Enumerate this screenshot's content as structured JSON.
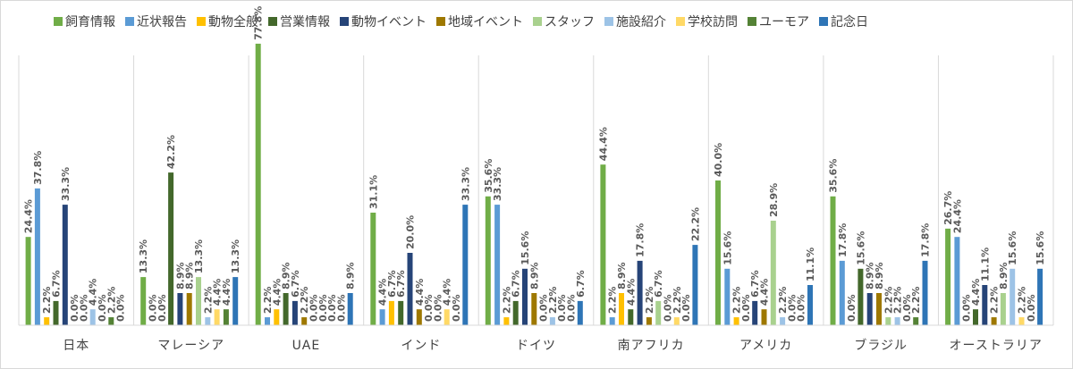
{
  "chart_data": {
    "type": "bar",
    "title": "",
    "xlabel": "",
    "ylabel": "",
    "ylim": [
      0,
      80
    ],
    "grid": false,
    "legend_position": "top",
    "categories": [
      "日本",
      "マレーシア",
      "UAE",
      "インド",
      "ドイツ",
      "南アフリカ",
      "アメリカ",
      "ブラジル",
      "オーストラリア"
    ],
    "series": [
      {
        "name": "飼育情報",
        "color": "#70ad47",
        "values": [
          24.4,
          13.3,
          77.8,
          31.1,
          35.6,
          44.4,
          40.0,
          35.6,
          26.7
        ]
      },
      {
        "name": "近状報告",
        "color": "#5b9bd5",
        "values": [
          37.8,
          0.0,
          2.2,
          4.4,
          33.3,
          2.2,
          15.6,
          17.8,
          24.4
        ]
      },
      {
        "name": "動物全般",
        "color": "#ffc000",
        "values": [
          2.2,
          0.0,
          4.4,
          6.7,
          2.2,
          8.9,
          2.2,
          0.0,
          0.0
        ]
      },
      {
        "name": "営業情報",
        "color": "#43682b",
        "values": [
          6.7,
          42.2,
          8.9,
          6.7,
          6.7,
          4.4,
          0.0,
          15.6,
          4.4
        ]
      },
      {
        "name": "動物イベント",
        "color": "#264478",
        "values": [
          33.3,
          8.9,
          6.7,
          20.0,
          15.6,
          17.8,
          6.7,
          8.9,
          11.1
        ]
      },
      {
        "name": "地域イベント",
        "color": "#9e7800",
        "values": [
          0.0,
          8.9,
          2.2,
          4.4,
          8.9,
          2.2,
          4.4,
          8.9,
          2.2
        ]
      },
      {
        "name": "スタッフ",
        "color": "#a9d18e",
        "values": [
          0.0,
          13.3,
          0.0,
          0.0,
          0.0,
          6.7,
          28.9,
          2.2,
          8.9
        ]
      },
      {
        "name": "施設紹介",
        "color": "#9dc3e6",
        "values": [
          4.4,
          2.2,
          0.0,
          0.0,
          2.2,
          0.0,
          2.2,
          2.2,
          15.6
        ]
      },
      {
        "name": "学校訪問",
        "color": "#ffd966",
        "values": [
          0.0,
          4.4,
          0.0,
          4.4,
          0.0,
          2.2,
          0.0,
          0.0,
          2.2
        ]
      },
      {
        "name": "ユーモア",
        "color": "#548235",
        "values": [
          2.2,
          4.4,
          0.0,
          0.0,
          0.0,
          0.0,
          0.0,
          2.2,
          0.0
        ]
      },
      {
        "name": "記念日",
        "color": "#2e75b6",
        "values": [
          0.0,
          13.3,
          8.9,
          33.3,
          6.7,
          22.2,
          11.1,
          17.8,
          15.6
        ]
      }
    ]
  }
}
